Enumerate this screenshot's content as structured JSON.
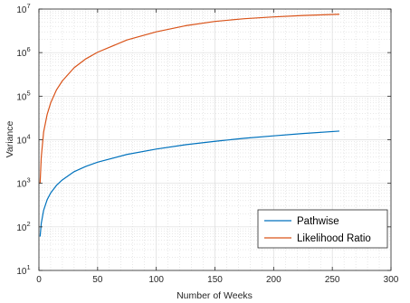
{
  "chart_data": {
    "type": "line",
    "xlabel": "Number of Weeks",
    "ylabel": "Variance",
    "xlim": [
      0,
      300
    ],
    "ylim_log10": [
      1,
      7
    ],
    "y_scale": "log",
    "x_ticks": [
      0,
      50,
      100,
      150,
      200,
      250,
      300
    ],
    "x_tick_labels": [
      "0",
      "50",
      "100",
      "150",
      "200",
      "250",
      "300"
    ],
    "y_ticks_exponent": [
      1,
      2,
      3,
      4,
      5,
      6,
      7
    ],
    "y_tick_base": "10",
    "grid": true,
    "legend_position": "bottom-right",
    "series": [
      {
        "name": "Pathwise",
        "color": "#0072BD",
        "x": [
          1,
          2,
          4,
          7,
          10,
          15,
          20,
          30,
          40,
          50,
          75,
          100,
          125,
          150,
          175,
          200,
          225,
          256
        ],
        "y": [
          60,
          120,
          240,
          420,
          600,
          900,
          1200,
          1850,
          2450,
          3050,
          4600,
          6100,
          7700,
          9200,
          10800,
          12300,
          13900,
          15800
        ]
      },
      {
        "name": "Likelihood Ratio",
        "color": "#D95319",
        "x": [
          1,
          2,
          4,
          7,
          10,
          15,
          20,
          30,
          40,
          50,
          75,
          100,
          125,
          150,
          175,
          200,
          225,
          256
        ],
        "y": [
          1000,
          4000,
          15000,
          38000,
          70000,
          140000,
          225000,
          450000,
          720000,
          1020000,
          1950000,
          3000000,
          4150000,
          5200000,
          6000000,
          6600000,
          7100000,
          7600000
        ]
      }
    ]
  }
}
